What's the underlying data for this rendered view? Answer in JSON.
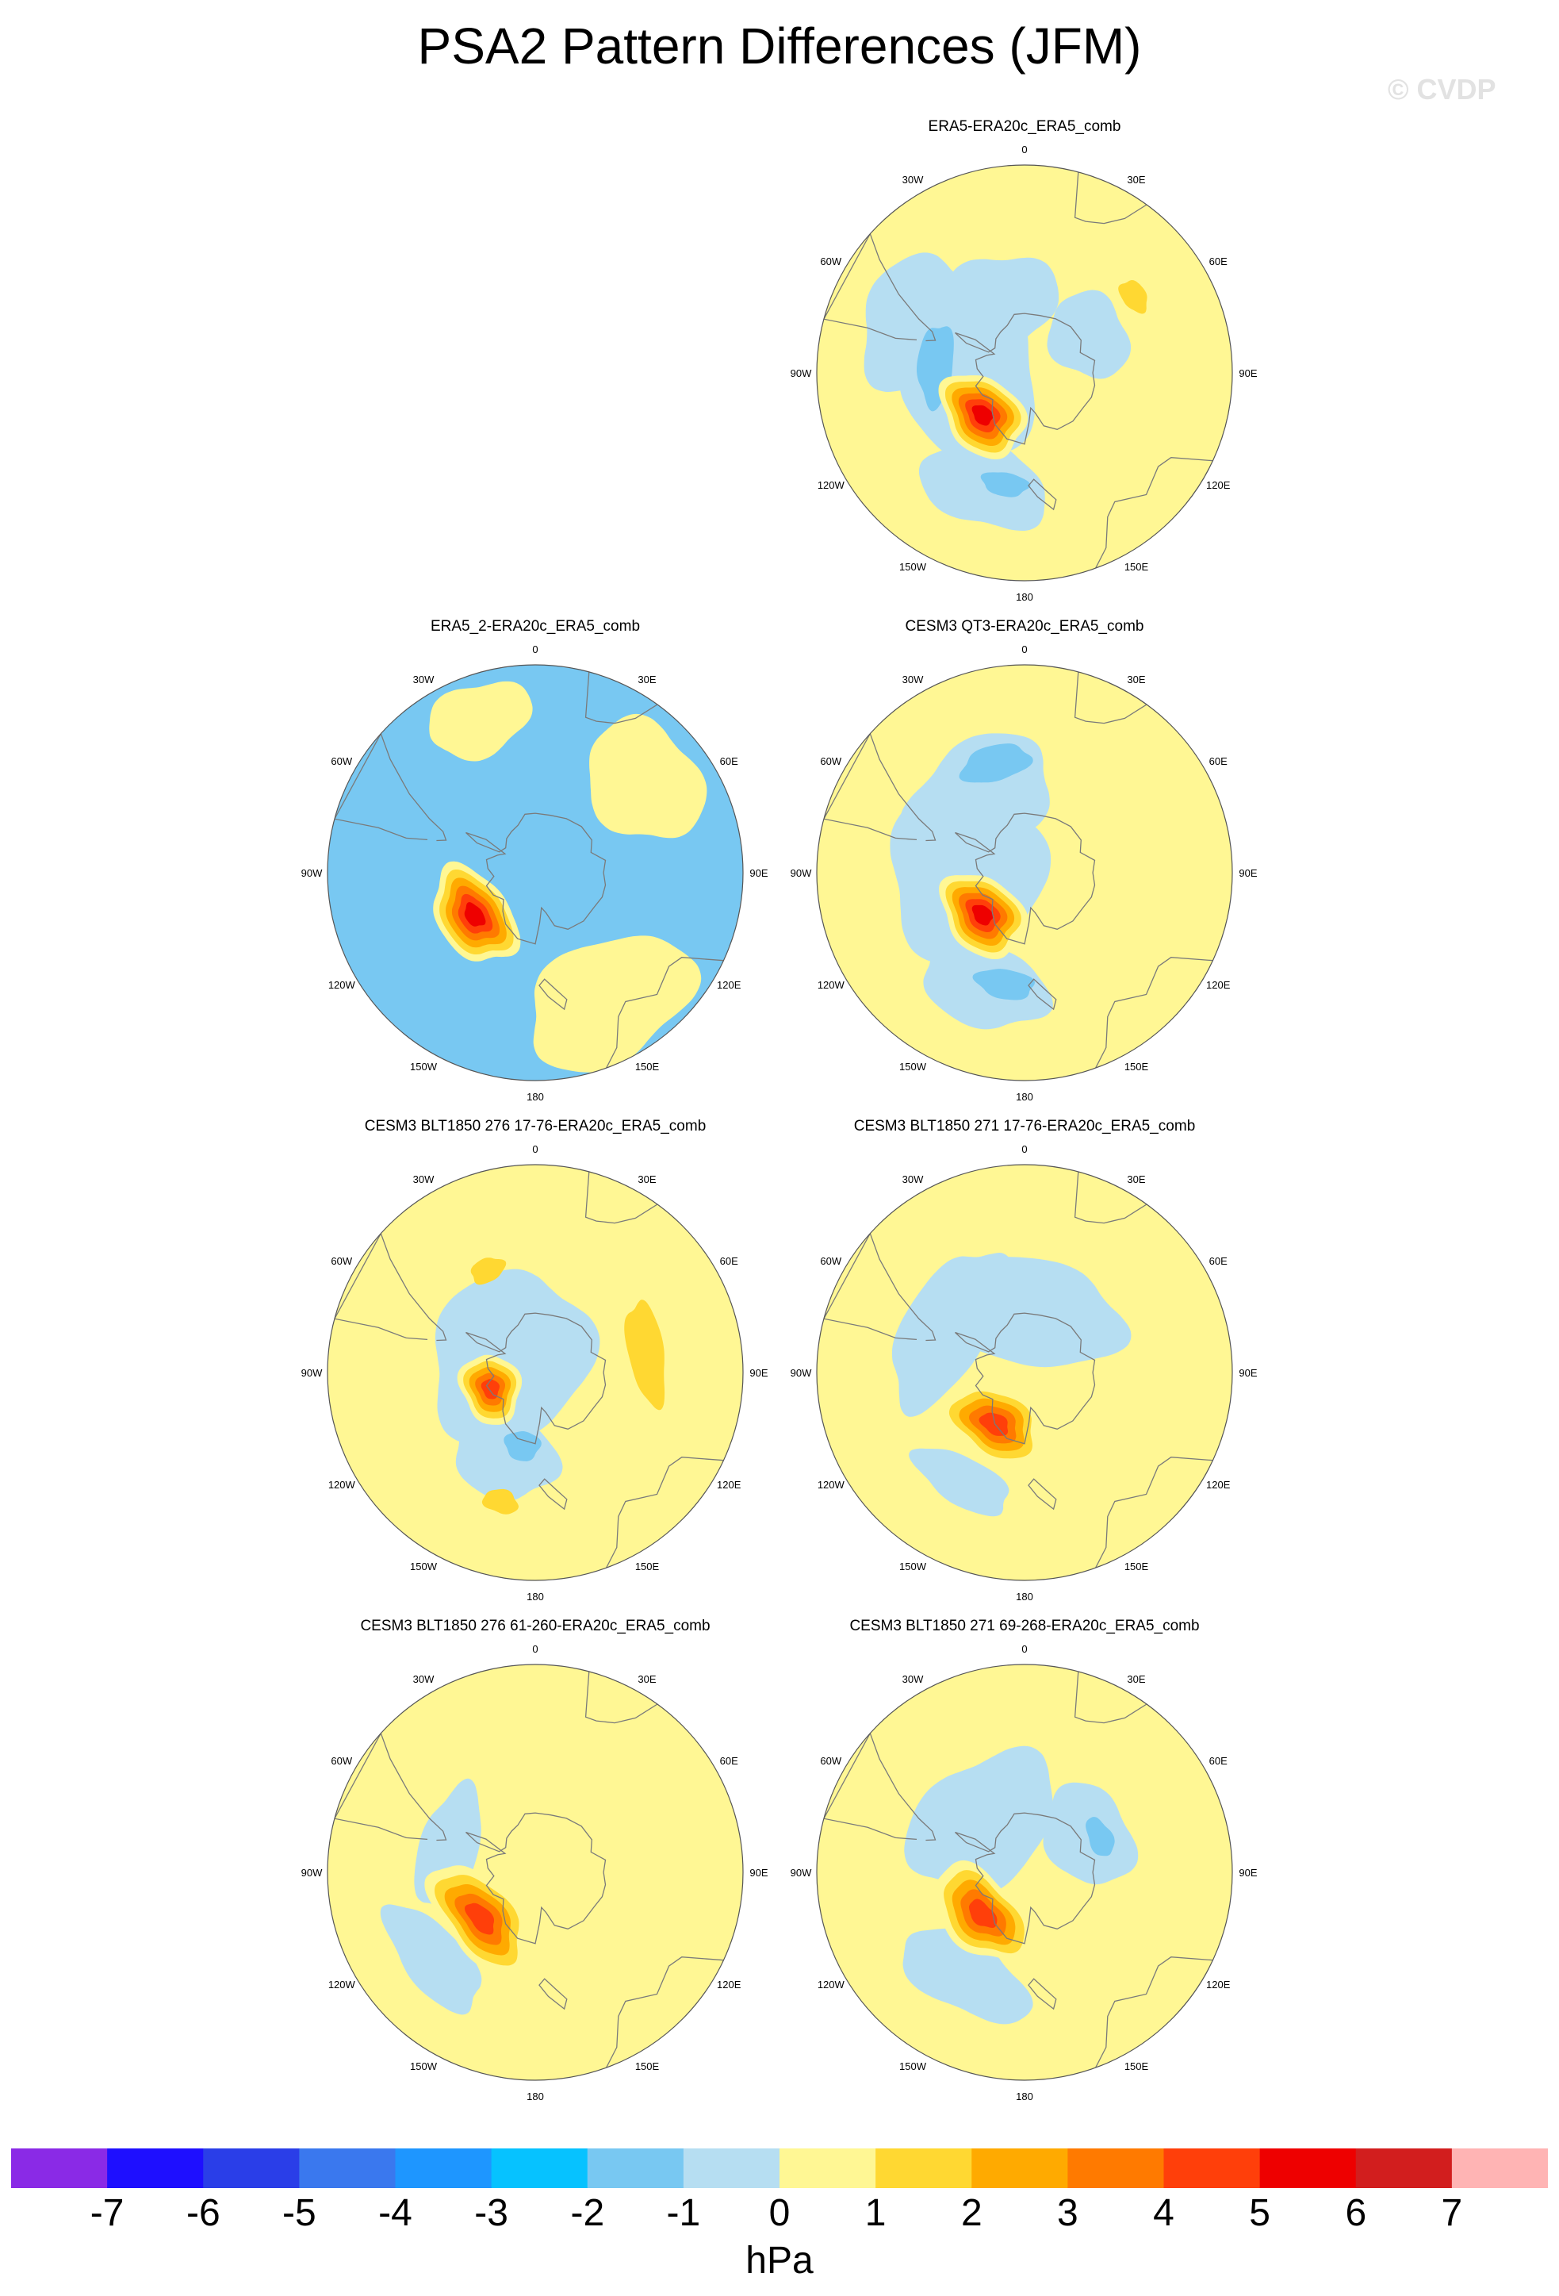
{
  "title": "PSA2 Pattern Differences (JFM)",
  "watermark": "© CVDP",
  "colors": {
    "land": "#7a7a7a",
    "ocean_outline": "#555555",
    "levels": [
      "#8a2ae6",
      "#1e0fff",
      "#2a3ee8",
      "#3a78ee",
      "#1e96ff",
      "#06c2ff",
      "#78c8f2",
      "#b6def2",
      "#fff794",
      "#ffd832",
      "#ffaa00",
      "#ff7a00",
      "#ff3f0a",
      "#ee0000",
      "#d21e1e",
      "#ffb4b4"
    ]
  },
  "lon_labels": [
    "0",
    "30E",
    "60E",
    "90E",
    "120E",
    "150E",
    "180",
    "150W",
    "120W",
    "90W",
    "60W",
    "30W"
  ],
  "colorbar": {
    "labels": [
      "-7",
      "-6",
      "-5",
      "-4",
      "-3",
      "-2",
      "-1",
      "0",
      "1",
      "2",
      "3",
      "4",
      "5",
      "6",
      "7"
    ],
    "units": "hPa"
  },
  "chart_data": {
    "type": "polar-stereographic contour map (Southern Hemisphere)",
    "variable": "PSA2 pattern sea level pressure difference",
    "season": "JFM",
    "units": "hPa",
    "levels": [
      -7,
      -6,
      -5,
      -4,
      -3,
      -2,
      -1,
      0,
      1,
      2,
      3,
      4,
      5,
      6,
      7
    ],
    "panels": [
      {
        "title": "ERA5-ERA20c_ERA5_comb",
        "background": 1,
        "features": [
          {
            "type": "region",
            "value": -1,
            "lon": -90,
            "colat": 18,
            "rx": 30,
            "ry": 22
          },
          {
            "type": "region",
            "value": -1,
            "lon": -20,
            "colat": 25,
            "rx": 20,
            "ry": 16
          },
          {
            "type": "region",
            "value": -1,
            "lon": 60,
            "colat": 25,
            "rx": 15,
            "ry": 13
          },
          {
            "type": "region",
            "value": -1,
            "lon": -160,
            "colat": 40,
            "rx": 22,
            "ry": 14
          },
          {
            "type": "region",
            "value": -1,
            "lon": -65,
            "colat": 40,
            "rx": 24,
            "ry": 18
          },
          {
            "type": "region",
            "value": -2,
            "lon": -85,
            "colat": 30,
            "rx": 14,
            "ry": 6
          },
          {
            "type": "region",
            "value": -2,
            "lon": -170,
            "colat": 38,
            "rx": 8,
            "ry": 4
          },
          {
            "type": "region",
            "value": 2,
            "lon": 55,
            "colat": 45,
            "rx": 6,
            "ry": 4
          },
          {
            "type": "peak",
            "value": 6,
            "lon": -135,
            "colat": 20,
            "rx": 16,
            "ry": 12
          }
        ]
      },
      {
        "title": "ERA5_2-ERA20c_ERA5_comb",
        "background": -1,
        "features": [
          {
            "type": "region",
            "value": 1,
            "lon": -20,
            "colat": 55,
            "rx": 18,
            "ry": 12
          },
          {
            "type": "region",
            "value": 1,
            "lon": 50,
            "colat": 48,
            "rx": 22,
            "ry": 18
          },
          {
            "type": "region",
            "value": 1,
            "lon": 150,
            "colat": 50,
            "rx": 30,
            "ry": 20
          },
          {
            "type": "region",
            "value": -2,
            "lon": -90,
            "colat": 10,
            "rx": 7,
            "ry": 5
          },
          {
            "type": "region",
            "value": -2,
            "lon": -160,
            "colat": 42,
            "rx": 12,
            "ry": 5
          },
          {
            "type": "peak",
            "value": 6,
            "lon": -125,
            "colat": 25,
            "rx": 18,
            "ry": 12
          }
        ]
      },
      {
        "title": "CESM3 QT3-ERA20c_ERA5_comb",
        "background": 1,
        "features": [
          {
            "type": "region",
            "value": -1,
            "lon": -90,
            "colat": 20,
            "rx": 30,
            "ry": 26
          },
          {
            "type": "region",
            "value": -1,
            "lon": -30,
            "colat": 30,
            "rx": 26,
            "ry": 18
          },
          {
            "type": "region",
            "value": -1,
            "lon": -160,
            "colat": 40,
            "rx": 22,
            "ry": 14
          },
          {
            "type": "region",
            "value": -2,
            "lon": -15,
            "colat": 38,
            "rx": 12,
            "ry": 6
          },
          {
            "type": "region",
            "value": -2,
            "lon": -170,
            "colat": 38,
            "rx": 10,
            "ry": 5
          },
          {
            "type": "peak",
            "value": 6,
            "lon": -135,
            "colat": 20,
            "rx": 16,
            "ry": 12
          }
        ]
      },
      {
        "title": "CESM3 BLT1850 276 17-76-ERA20c_ERA5_comb",
        "background": 1,
        "features": [
          {
            "type": "region",
            "value": -1,
            "lon": -60,
            "colat": 10,
            "rx": 30,
            "ry": 26
          },
          {
            "type": "region",
            "value": -1,
            "lon": -160,
            "colat": 30,
            "rx": 18,
            "ry": 14
          },
          {
            "type": "region",
            "value": -2,
            "lon": -170,
            "colat": 25,
            "rx": 6,
            "ry": 5
          },
          {
            "type": "region",
            "value": 2,
            "lon": -25,
            "colat": 38,
            "rx": 6,
            "ry": 4
          },
          {
            "type": "region",
            "value": 2,
            "lon": 80,
            "colat": 38,
            "rx": 18,
            "ry": 6
          },
          {
            "type": "region",
            "value": 2,
            "lon": -165,
            "colat": 45,
            "rx": 6,
            "ry": 4
          },
          {
            "type": "peak",
            "value": 5,
            "lon": -110,
            "colat": 16,
            "rx": 12,
            "ry": 10
          }
        ]
      },
      {
        "title": "CESM3 BLT1850 271 17-76-ERA20c_ERA5_comb",
        "background": 1,
        "features": [
          {
            "type": "region",
            "value": -1,
            "lon": -60,
            "colat": 30,
            "rx": 30,
            "ry": 14
          },
          {
            "type": "region",
            "value": -1,
            "lon": 10,
            "colat": 20,
            "rx": 30,
            "ry": 18
          },
          {
            "type": "region",
            "value": -1,
            "lon": -150,
            "colat": 42,
            "rx": 18,
            "ry": 8
          },
          {
            "type": "peak",
            "value": 5,
            "lon": -150,
            "colat": 20,
            "rx": 18,
            "ry": 12
          }
        ]
      },
      {
        "title": "CESM3 BLT1850 276 61-260-ERA20c_ERA5_comb",
        "background": 1,
        "features": [
          {
            "type": "region",
            "value": -1,
            "lon": -75,
            "colat": 30,
            "rx": 22,
            "ry": 10
          },
          {
            "type": "region",
            "value": -1,
            "lon": -130,
            "colat": 45,
            "rx": 22,
            "ry": 10
          },
          {
            "type": "peak",
            "value": 5,
            "lon": -130,
            "colat": 24,
            "rx": 22,
            "ry": 12
          }
        ]
      },
      {
        "title": "CESM3 BLT1850 271 69-268-ERA20c_ERA5_comb",
        "background": 1,
        "features": [
          {
            "type": "region",
            "value": -1,
            "lon": -40,
            "colat": 22,
            "rx": 28,
            "ry": 20
          },
          {
            "type": "region",
            "value": -1,
            "lon": 60,
            "colat": 25,
            "rx": 18,
            "ry": 14
          },
          {
            "type": "region",
            "value": -1,
            "lon": -150,
            "colat": 40,
            "rx": 24,
            "ry": 12
          },
          {
            "type": "region",
            "value": -2,
            "lon": 65,
            "colat": 28,
            "rx": 7,
            "ry": 4
          },
          {
            "type": "peak",
            "value": 5,
            "lon": -135,
            "colat": 20,
            "rx": 20,
            "ry": 12
          }
        ]
      }
    ]
  }
}
